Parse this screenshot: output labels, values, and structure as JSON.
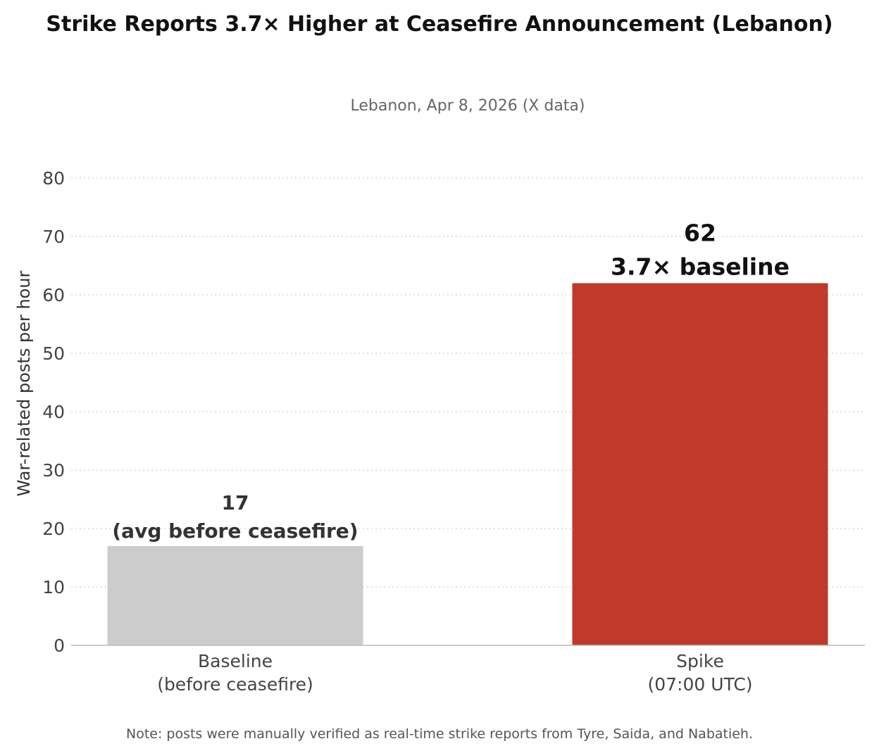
{
  "chart_data": {
    "type": "bar",
    "title": "Strike Reports 3.7× Higher at Ceasefire Announcement (Lebanon)",
    "subtitle": "Lebanon, Apr 8, 2026 (X data)",
    "xlabel": "",
    "ylabel": "War-related posts per hour",
    "ylim": [
      0,
      80
    ],
    "yticks": [
      0,
      10,
      20,
      30,
      40,
      50,
      60,
      70,
      80
    ],
    "grid": true,
    "grid_axis": "y",
    "categories": [
      [
        "Baseline",
        "(before ceasefire)"
      ],
      [
        "Spike",
        "(07:00 UTC)"
      ]
    ],
    "values": [
      17,
      62
    ],
    "colors": [
      "#cccccc",
      "#c0392b"
    ],
    "data_labels": [
      {
        "value": "17",
        "note": "(avg before ceasefire)",
        "color": "#333333"
      },
      {
        "value": "62",
        "note": "3.7× baseline",
        "color": "#111111"
      }
    ],
    "note": "Note: posts were manually verified as real-time strike reports from Tyre, Saida, and Nabatieh."
  }
}
